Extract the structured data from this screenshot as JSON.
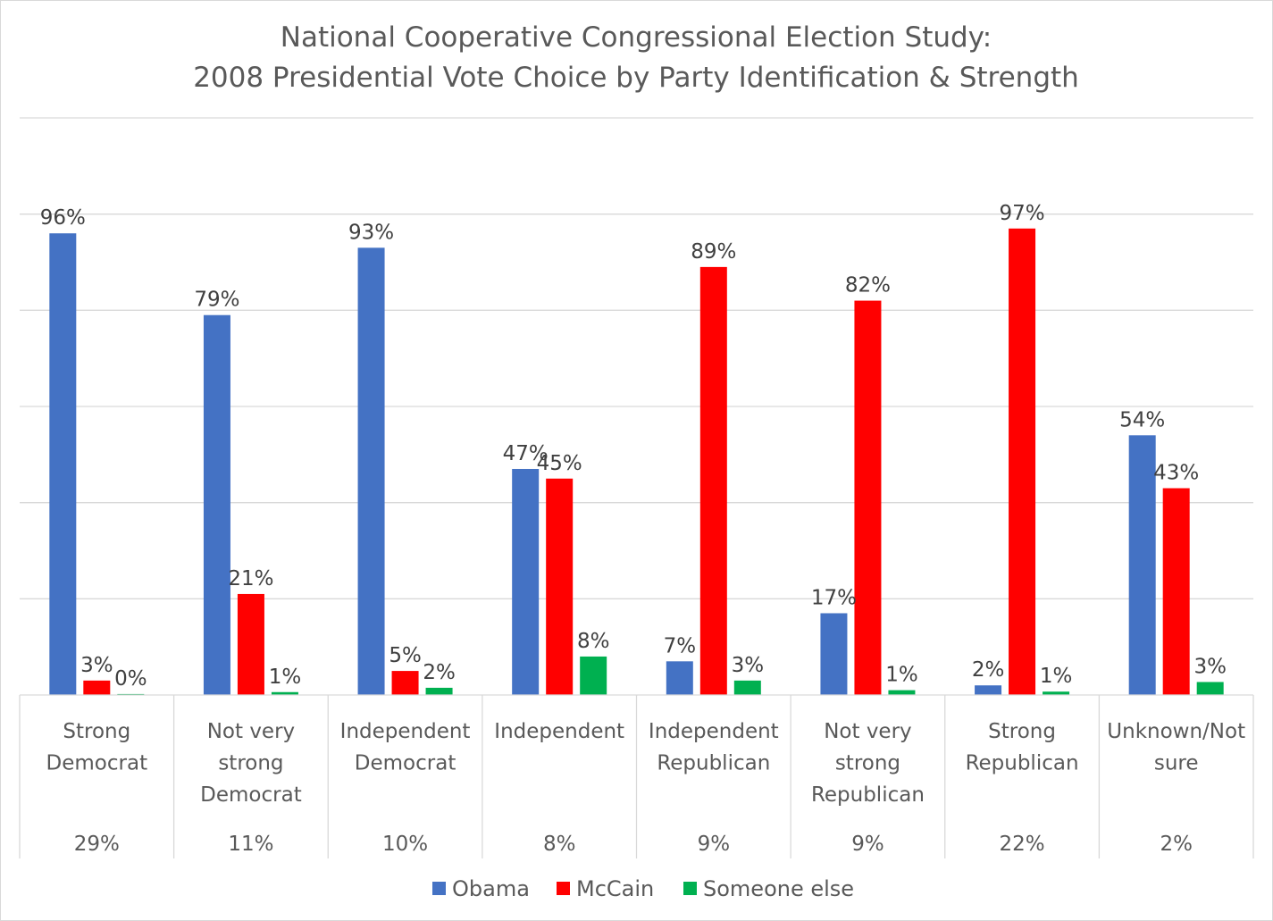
{
  "chart_data": {
    "type": "bar",
    "title": "National Cooperative Congressional Election Study: 2008 Presidential Vote Choice by Party Identification & Strength",
    "title_lines": [
      "National Cooperative Congressional Election Study:",
      "2008 Presidential Vote Choice by Party Identification & Strength"
    ],
    "categories": [
      [
        "Strong",
        "Democrat"
      ],
      [
        "Not very",
        "strong",
        "Democrat"
      ],
      [
        "Independent",
        "Democrat"
      ],
      [
        "Independent"
      ],
      [
        "Independent",
        "Republican"
      ],
      [
        "Not very",
        "strong",
        "Republican"
      ],
      [
        "Strong",
        "Republican"
      ],
      [
        "Unknown/Not",
        "sure"
      ]
    ],
    "category_shares": [
      "29%",
      "11%",
      "10%",
      "8%",
      "9%",
      "9%",
      "22%",
      "2%"
    ],
    "series": [
      {
        "name": "Obama",
        "color": "#4472C4",
        "values": [
          96,
          79,
          93,
          47,
          7,
          17,
          2,
          54
        ],
        "labels": [
          "96%",
          "79%",
          "93%",
          "47%",
          "7%",
          "17%",
          "2%",
          "54%"
        ]
      },
      {
        "name": "McCain",
        "color": "#FF0000",
        "values": [
          3,
          21,
          5,
          45,
          89,
          82,
          97,
          43
        ],
        "labels": [
          "3%",
          "21%",
          "5%",
          "45%",
          "89%",
          "82%",
          "97%",
          "43%"
        ]
      },
      {
        "name": "Someone else",
        "color": "#00B050",
        "values": [
          0.2,
          0.6,
          1.5,
          8,
          3,
          1,
          0.7,
          2.7
        ],
        "labels": [
          "0%",
          "1%",
          "2%",
          "8%",
          "3%",
          "1%",
          "1%",
          "3%"
        ]
      }
    ],
    "ylim": [
      0,
      120
    ],
    "grid": true,
    "legend": "bottom",
    "xlabel": "",
    "ylabel": ""
  }
}
